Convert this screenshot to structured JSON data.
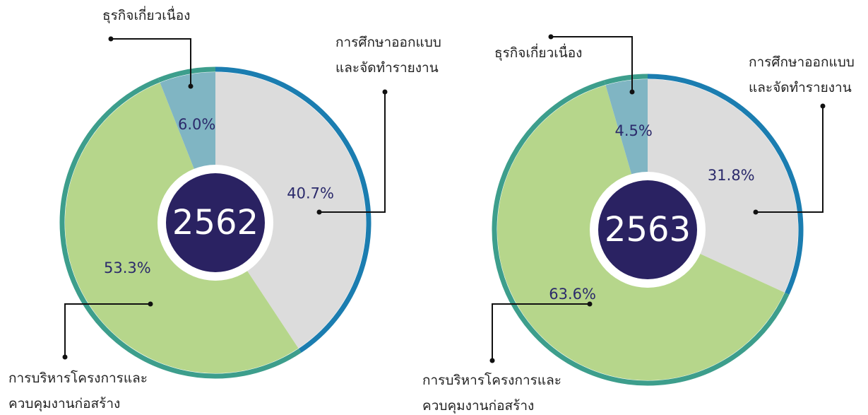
{
  "chart_data": [
    {
      "type": "pie",
      "center_label": "2562",
      "categories": [
        "การศึกษาออกแบบ\nและจัดทำรายงาน",
        "การบริหารโครงการและ\nควบคุมงานก่อสร้าง",
        "ธุรกิจเกี่ยวเนื่อง"
      ],
      "values": [
        40.7,
        53.3,
        6.0
      ],
      "value_labels": [
        "40.7%",
        "53.3%",
        "6.0%"
      ],
      "colors": [
        "#dcdcdc",
        "#b6d68b",
        "#80b5c3"
      ],
      "ring_colors": [
        "#1b7db0",
        "#3d9e8c",
        "#3d9e8c"
      ]
    },
    {
      "type": "pie",
      "center_label": "2563",
      "categories": [
        "การศึกษาออกแบบ\nและจัดทำรายงาน",
        "การบริหารโครงการและ\nควบคุมงานก่อสร้าง",
        "ธุรกิจเกี่ยวเนื่อง"
      ],
      "values": [
        31.8,
        63.6,
        4.5
      ],
      "value_labels": [
        "31.8%",
        "63.6%",
        "4.5%"
      ],
      "colors": [
        "#dcdcdc",
        "#b6d68b",
        "#80b5c3"
      ],
      "ring_colors": [
        "#1b7db0",
        "#3d9e8c",
        "#3d9e8c"
      ]
    }
  ]
}
